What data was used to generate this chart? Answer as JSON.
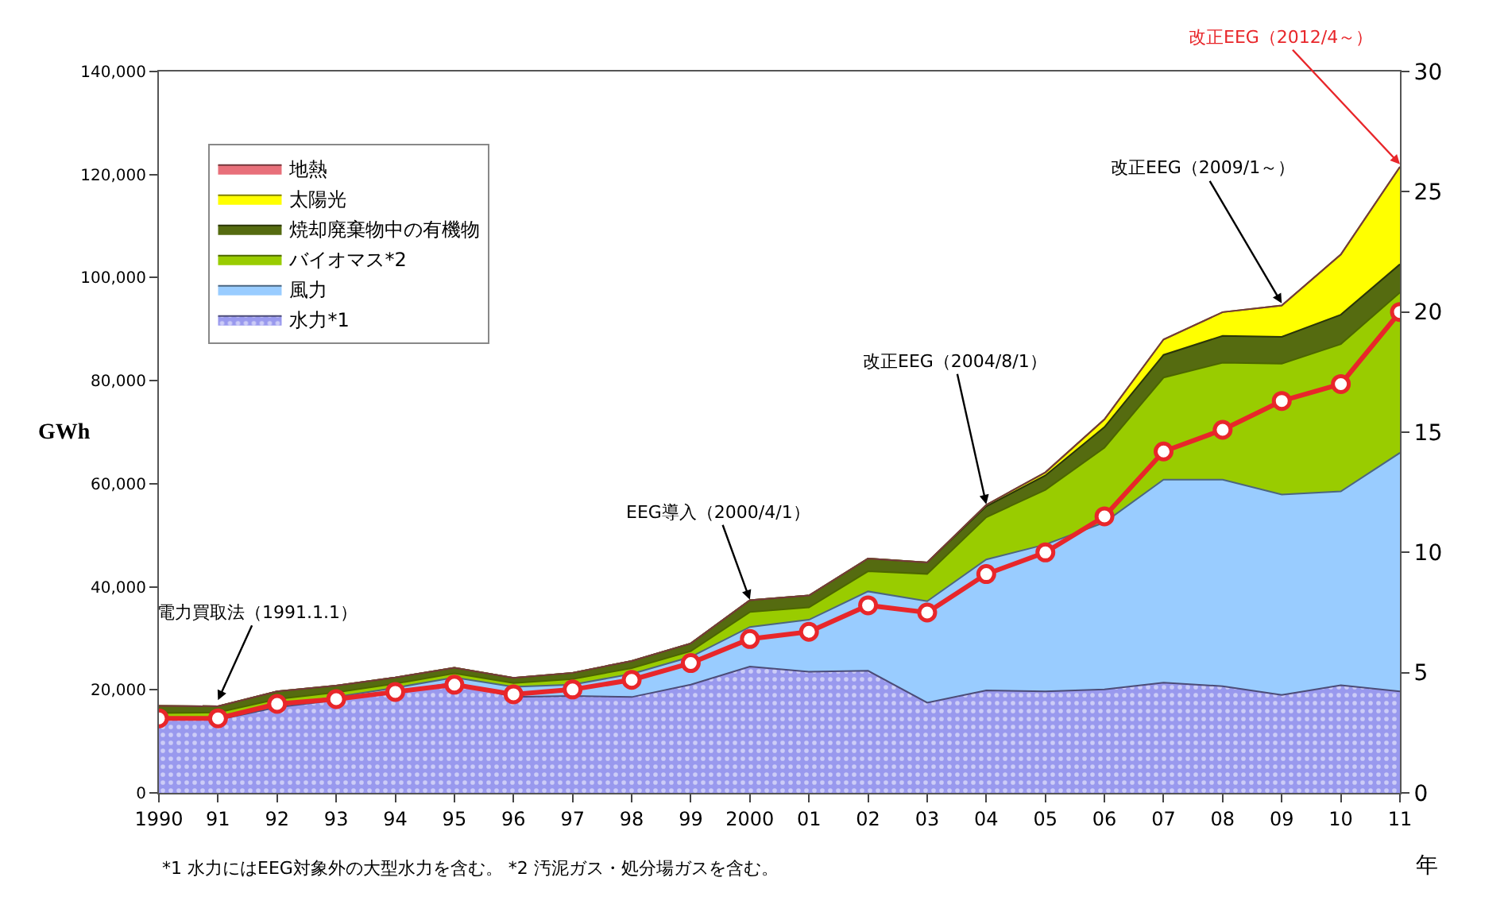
{
  "chart_data": {
    "type": "area",
    "stacked": true,
    "xlabel": "年",
    "ylabel": "GWh",
    "legend": "top left",
    "grid": false,
    "categories": [
      "1990",
      "91",
      "92",
      "93",
      "94",
      "95",
      "96",
      "97",
      "98",
      "99",
      "2000",
      "01",
      "02",
      "03",
      "04",
      "05",
      "06",
      "07",
      "08",
      "09",
      "10",
      "11"
    ],
    "ylim": [
      0,
      140000
    ],
    "yticks": [
      0,
      {
        "value": 20000,
        "label": "20,000"
      },
      {
        "value": 40000,
        "label": "40,000"
      },
      {
        "value": 60000,
        "label": "60,000"
      },
      {
        "value": 80000,
        "label": "80,000"
      },
      {
        "value": 100000,
        "label": "100,000"
      },
      {
        "value": 120000,
        "label": "120,000"
      },
      {
        "value": 140000,
        "label": "140,000"
      }
    ],
    "y2lim": [
      0,
      30
    ],
    "y2ticks": [
      0,
      5,
      10,
      15,
      20,
      25,
      30
    ],
    "series": [
      {
        "name": "水力*1",
        "color": "#9999ee",
        "values": [
          14200,
          14200,
          16600,
          18000,
          19500,
          21400,
          18600,
          18800,
          18600,
          21000,
          24500,
          23500,
          23700,
          17500,
          19900,
          19700,
          20100,
          21400,
          20700,
          19000,
          20900,
          19700
        ]
      },
      {
        "name": "風力",
        "color": "#99ccff",
        "values": [
          100,
          200,
          300,
          600,
          900,
          1000,
          2000,
          2200,
          4500,
          5400,
          7700,
          10100,
          15400,
          19700,
          25400,
          28500,
          32400,
          39400,
          40100,
          38900,
          37600,
          46300
        ]
      },
      {
        "name": "バイオマス*2",
        "color": "#99cc00",
        "values": [
          1200,
          1200,
          1300,
          900,
          800,
          800,
          700,
          1100,
          1100,
          1100,
          2900,
          2400,
          3900,
          5300,
          8200,
          10600,
          14500,
          19800,
          22700,
          25400,
          28600,
          31100
        ]
      },
      {
        "name": "焼却廃棄物中の有機物",
        "color": "#556b10",
        "values": [
          1400,
          1200,
          1500,
          1300,
          1200,
          1100,
          1000,
          1200,
          1400,
          1500,
          2300,
          2300,
          2500,
          2200,
          2100,
          2800,
          4000,
          4400,
          5200,
          5200,
          5700,
          5500
        ]
      },
      {
        "name": "太陽光",
        "color": "#ffff00",
        "values": [
          0,
          0,
          0,
          0,
          0,
          0,
          0,
          0,
          0,
          0,
          0,
          0,
          0,
          0,
          300,
          600,
          1500,
          3000,
          4600,
          6100,
          11700,
          18900
        ]
      },
      {
        "name": "地熱",
        "color": "#e8707a",
        "values": [
          null,
          null,
          null,
          null,
          null,
          null,
          null,
          null,
          null,
          null,
          null,
          null,
          null,
          null,
          null,
          null,
          null,
          null,
          null,
          null,
          null,
          null
        ]
      },
      {
        "type": "line",
        "axis": "y2",
        "color": "#e8262a",
        "marker": "circle",
        "values": [
          3.1,
          3.1,
          3.7,
          3.9,
          4.2,
          4.5,
          4.1,
          4.3,
          4.7,
          5.4,
          6.4,
          6.7,
          7.8,
          7.5,
          9.1,
          10.0,
          11.5,
          14.2,
          15.1,
          16.3,
          17.0,
          20.0
        ]
      }
    ],
    "annotations": [
      {
        "text": "電力買取法（1991.1.1）",
        "x": "91",
        "y": 18000
      },
      {
        "text": "EEG導入（2000/4/1）",
        "x": "2000",
        "y": 37500
      },
      {
        "text": "改正EEG（2004/8/1）",
        "x": "04",
        "y": 56000
      },
      {
        "text": "改正EEG（2009/1～）",
        "x": "09",
        "y": 95000
      },
      {
        "text": "改正EEG（2012/4～）",
        "x": "11",
        "y": 122000
      },
      "*1 水力にはEEG対象外の大型水力を含む。 *2 汚泥ガス・処分場ガスを含む。"
    ]
  }
}
